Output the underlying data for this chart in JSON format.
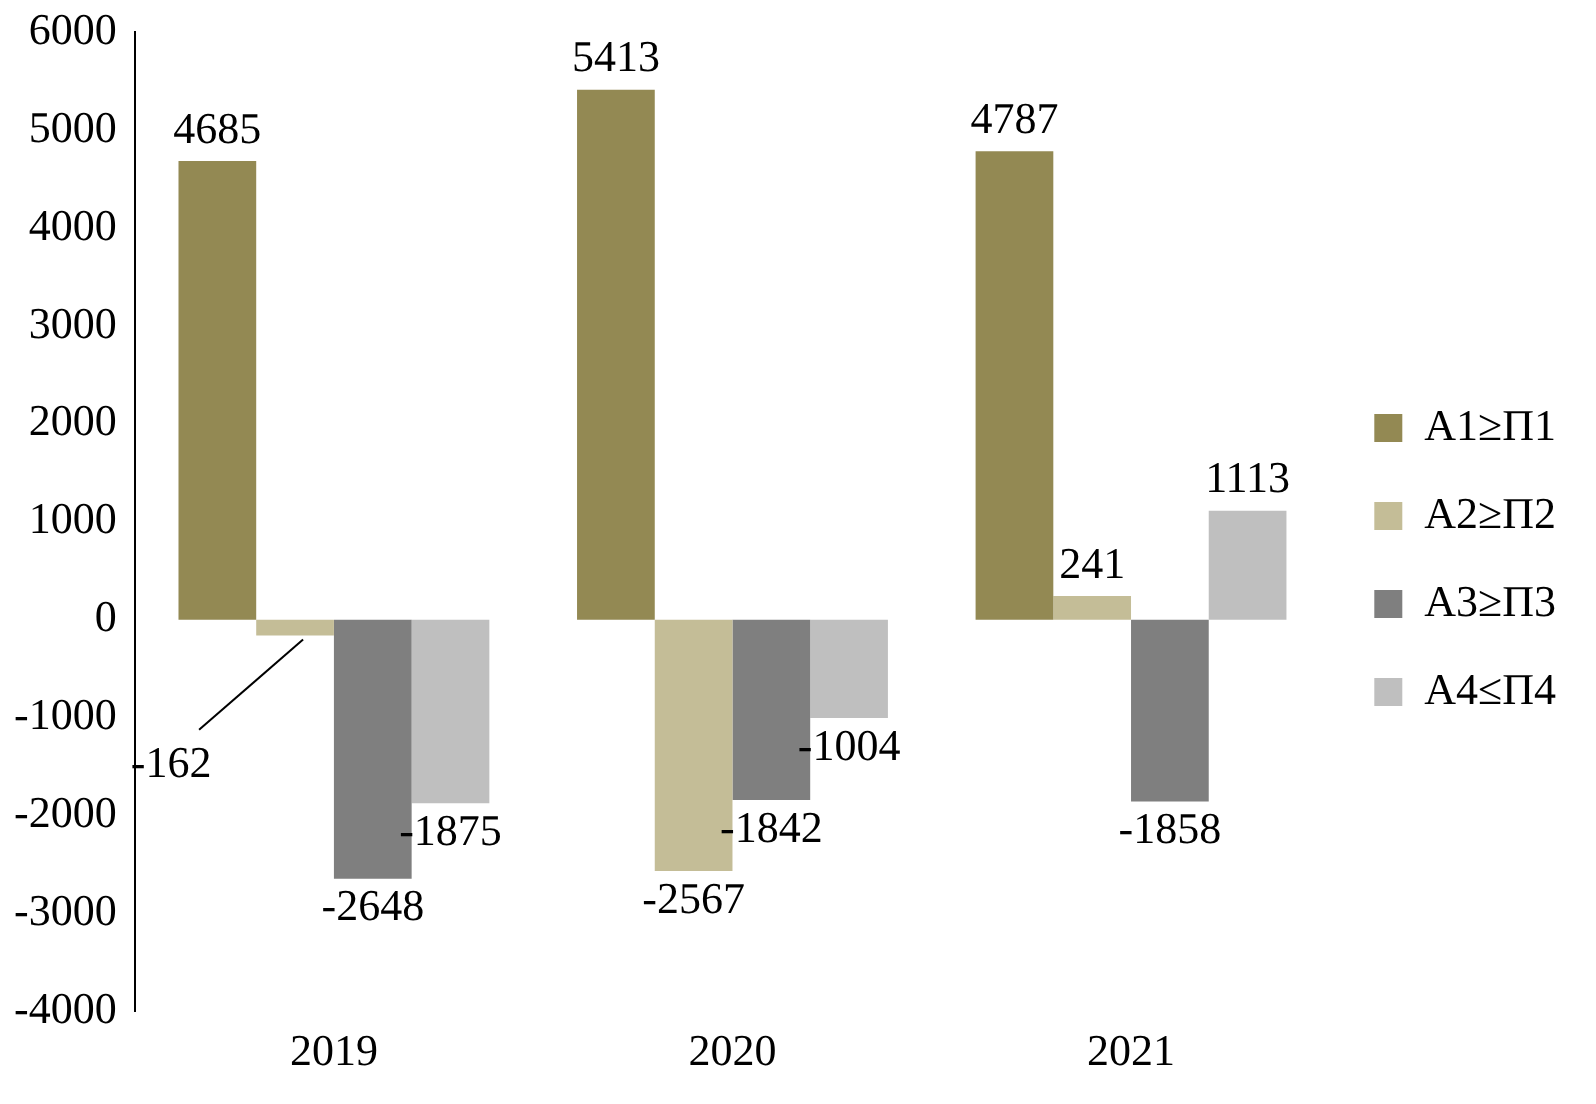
{
  "chart_data": {
    "type": "bar",
    "categories": [
      "2019",
      "2020",
      "2021"
    ],
    "series": [
      {
        "name": "А1≥П1",
        "color": "#938953",
        "values": [
          4685,
          5413,
          4787
        ]
      },
      {
        "name": "А2≥П2",
        "color": "#c4bd97",
        "values": [
          -162,
          -2567,
          241
        ]
      },
      {
        "name": "А3≥П3",
        "color": "#7f7f7f",
        "values": [
          -2648,
          -1842,
          -1858
        ]
      },
      {
        "name": "А4≤П4",
        "color": "#bfbfbf",
        "values": [
          -1875,
          -1004,
          1113
        ]
      }
    ],
    "ylim": [
      -4000,
      6000
    ],
    "yticks": [
      -4000,
      -3000,
      -2000,
      -1000,
      0,
      1000,
      2000,
      3000,
      4000,
      5000,
      6000
    ],
    "grid": false,
    "legend": "right",
    "data_labels": true
  }
}
